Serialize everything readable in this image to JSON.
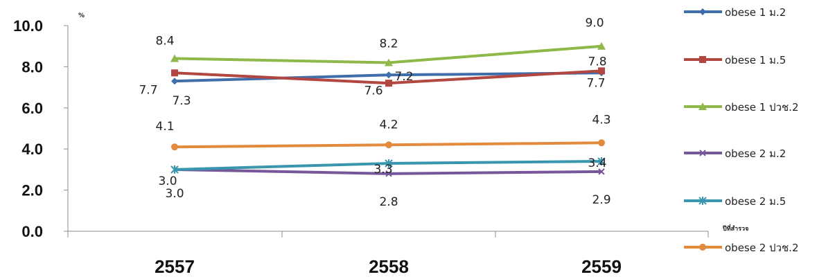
{
  "chart_data": {
    "type": "line",
    "title": "",
    "ylabel": "%",
    "xlabel": "ปีที่สำรวจ",
    "categories": [
      "2557",
      "2558",
      "2559"
    ],
    "ylim": [
      0,
      10
    ],
    "yticks": [
      "0.0",
      "2.0",
      "4.0",
      "6.0",
      "8.0",
      "10.0"
    ],
    "grid": false,
    "legend_position": "right",
    "series": [
      {
        "name": "obese 1 ม.2",
        "values": [
          7.3,
          7.6,
          7.7
        ],
        "color": "#3F6EAB",
        "marker": "diamond",
        "labels": [
          "7.3",
          "7.6",
          "7.7"
        ]
      },
      {
        "name": "obese 1 ม.5",
        "values": [
          7.7,
          7.2,
          7.8
        ],
        "color": "#B24641",
        "marker": "square",
        "labels": [
          "7.7",
          "7.2",
          "7.8"
        ]
      },
      {
        "name": "obese 1 ปวช.2",
        "values": [
          8.4,
          8.2,
          9.0
        ],
        "color": "#8EB84A",
        "marker": "triangle",
        "labels": [
          "8.4",
          "8.2",
          "9.0"
        ]
      },
      {
        "name": "obese 2 ม.2",
        "values": [
          3.0,
          2.8,
          2.9
        ],
        "color": "#76579A",
        "marker": "x",
        "labels": [
          "3.0",
          "2.8",
          "2.9"
        ]
      },
      {
        "name": "obese 2 ม.5",
        "values": [
          3.0,
          3.3,
          3.4
        ],
        "color": "#3996AE",
        "marker": "star",
        "labels": [
          "3.0",
          "3.3",
          "3.4"
        ]
      },
      {
        "name": "obese 2 ปวช.2",
        "values": [
          4.1,
          4.2,
          4.3
        ],
        "color": "#E38A3D",
        "marker": "circle",
        "labels": [
          "4.1",
          "4.2",
          "4.3"
        ]
      }
    ]
  }
}
